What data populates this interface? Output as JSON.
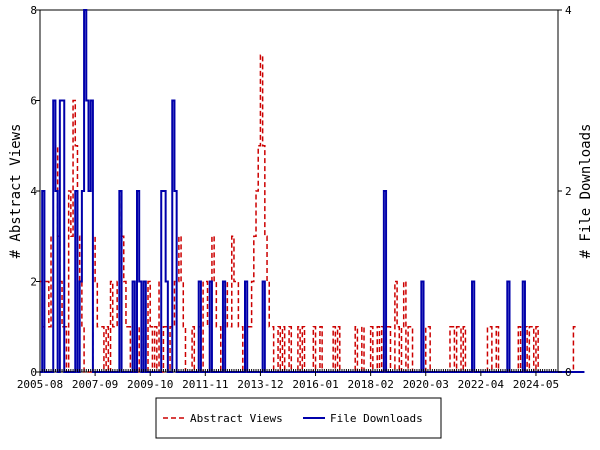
{
  "chart_data": {
    "type": "line",
    "title": "",
    "xlabel": "",
    "ylabel_left": "# Abstract Views",
    "ylabel_right": "# File Downloads",
    "x_ticks": [
      "2005-08",
      "2007-09",
      "2009-10",
      "2011-11",
      "2013-12",
      "2016-01",
      "2018-02",
      "2020-03",
      "2022-04",
      "2024-05"
    ],
    "x_range_months": [
      0,
      235
    ],
    "ylim_left": [
      0,
      8
    ],
    "yticks_left": [
      0,
      2,
      4,
      6,
      8
    ],
    "ylim_right": [
      0,
      4
    ],
    "yticks_right": [
      0,
      2,
      4
    ],
    "grid": false,
    "legend_position": "bottom",
    "series": [
      {
        "name": "Abstract Views",
        "axis": "left",
        "color": "#cc0000",
        "style": "dashed",
        "values": [
          2,
          1,
          2,
          2,
          1,
          3,
          4,
          5,
          3,
          2,
          1,
          1,
          0,
          4,
          3,
          6,
          5,
          3,
          2,
          1,
          0,
          0,
          0,
          0,
          3,
          2,
          1,
          1,
          1,
          0,
          1,
          0,
          2,
          1,
          1,
          2,
          4,
          3,
          2,
          1,
          1,
          0,
          0,
          0,
          1,
          0,
          0,
          1,
          0,
          2,
          1,
          0,
          1,
          0,
          2,
          0,
          1,
          1,
          0,
          1,
          1,
          2,
          2,
          3,
          2,
          1,
          0,
          0,
          0,
          1,
          0,
          0,
          1,
          0,
          2,
          2,
          1,
          2,
          3,
          2,
          1,
          1,
          0,
          0,
          2,
          1,
          1,
          3,
          2,
          2,
          1,
          1,
          0,
          0,
          1,
          1,
          2,
          3,
          4,
          5,
          7,
          5,
          3,
          2,
          1,
          1,
          0,
          0,
          1,
          0,
          1,
          0,
          0,
          1,
          0,
          0,
          0,
          1,
          0,
          1,
          0,
          0,
          0,
          0,
          1,
          0,
          0,
          1,
          0,
          0,
          0,
          0,
          0,
          1,
          0,
          1,
          0,
          0,
          0,
          0,
          0,
          0,
          0,
          1,
          0,
          0,
          1,
          0,
          0,
          0,
          1,
          0,
          0,
          1,
          0,
          1,
          0,
          1,
          1,
          0,
          0,
          2,
          1,
          0,
          1,
          2,
          0,
          1,
          1,
          0,
          0,
          0,
          0,
          0,
          0,
          1,
          1,
          0,
          0,
          0,
          0,
          0,
          0,
          0,
          0,
          0,
          1,
          1,
          0,
          1,
          1,
          0,
          1,
          0,
          0,
          0,
          0,
          0,
          0,
          0,
          0,
          0,
          0,
          1,
          1,
          0,
          0,
          1,
          0,
          0,
          0,
          0,
          0,
          0,
          0,
          0,
          0,
          1,
          0,
          0,
          1,
          0,
          1,
          1,
          0,
          1,
          0,
          0,
          0,
          0,
          0,
          0,
          0,
          0,
          0,
          0,
          0,
          0,
          0,
          0,
          0,
          0,
          1
        ]
      },
      {
        "name": "File Downloads",
        "axis": "right",
        "color": "#0000aa",
        "style": "solid",
        "values": [
          0,
          2,
          0,
          0,
          0,
          0,
          3,
          2,
          0,
          3,
          3,
          0,
          0,
          0,
          0,
          0,
          2,
          0,
          1,
          2,
          4,
          3,
          2,
          3,
          0,
          0,
          0,
          0,
          0,
          0,
          0,
          0,
          0,
          0,
          0,
          0,
          2,
          0,
          0,
          0,
          0,
          0,
          1,
          0,
          2,
          1,
          0,
          1,
          0,
          0,
          0,
          0,
          0,
          0,
          0,
          2,
          2,
          1,
          0,
          0,
          3,
          2,
          0,
          0,
          0,
          0,
          0,
          0,
          0,
          0,
          0,
          0,
          1,
          0,
          0,
          0,
          0,
          1,
          0,
          0,
          0,
          0,
          0,
          1,
          0,
          0,
          0,
          0,
          0,
          0,
          0,
          0,
          0,
          1,
          0,
          0,
          0,
          0,
          0,
          0,
          0,
          1,
          0,
          0,
          0,
          0,
          0,
          0,
          0,
          0,
          0,
          0,
          0,
          0,
          0,
          0,
          0,
          0,
          0,
          0,
          0,
          0,
          0,
          0,
          0,
          0,
          0,
          0,
          0,
          0,
          0,
          0,
          0,
          0,
          0,
          0,
          0,
          0,
          0,
          0,
          0,
          0,
          0,
          0,
          0,
          0,
          0,
          0,
          0,
          0,
          0,
          0,
          0,
          0,
          0,
          0,
          2,
          0,
          0,
          0,
          0,
          0,
          0,
          0,
          0,
          0,
          0,
          0,
          0,
          0,
          0,
          0,
          0,
          1,
          0,
          0,
          0,
          0,
          0,
          0,
          0,
          0,
          0,
          0,
          0,
          0,
          0,
          0,
          0,
          0,
          0,
          0,
          0,
          0,
          0,
          0,
          1,
          0,
          0,
          0,
          0,
          0,
          0,
          0,
          0,
          0,
          0,
          0,
          0,
          0,
          0,
          0,
          1,
          0,
          0,
          0,
          0,
          0,
          0,
          1,
          0,
          0,
          0,
          0,
          0,
          0,
          0,
          0,
          0,
          0,
          0,
          0,
          0,
          0,
          0,
          0,
          0,
          0,
          0,
          0,
          0,
          0,
          0,
          0,
          0,
          0,
          0
        ]
      }
    ]
  }
}
